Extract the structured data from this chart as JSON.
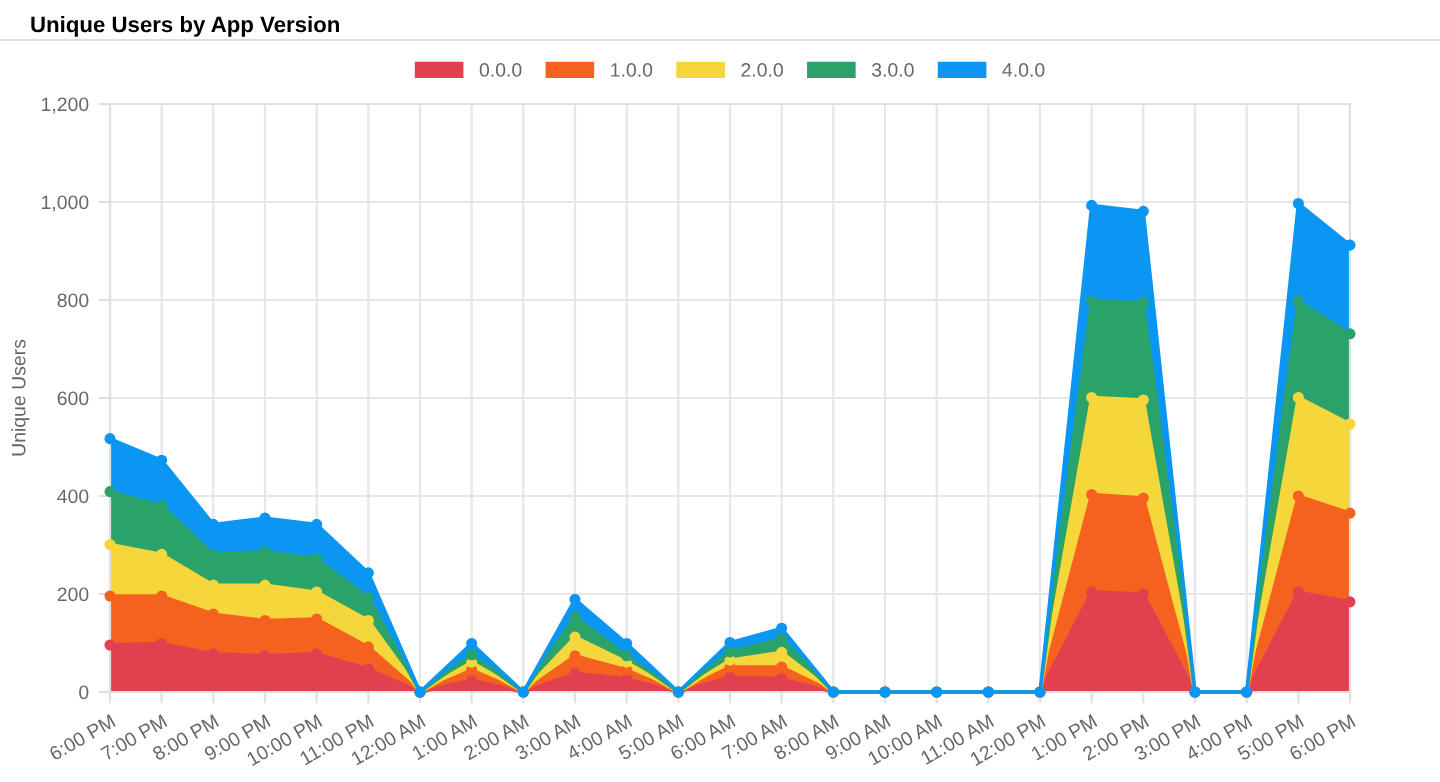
{
  "chart_data": {
    "type": "area",
    "title": "Unique Users by App Version",
    "ylabel": "Unique Users",
    "categories": [
      "6:00 PM",
      "7:00 PM",
      "8:00 PM",
      "9:00 PM",
      "10:00 PM",
      "11:00 PM",
      "12:00 AM",
      "1:00 AM",
      "2:00 AM",
      "3:00 AM",
      "4:00 AM",
      "5:00 AM",
      "6:00 AM",
      "7:00 AM",
      "8:00 AM",
      "9:00 AM",
      "10:00 AM",
      "11:00 AM",
      "12:00 PM",
      "1:00 PM",
      "2:00 PM",
      "3:00 PM",
      "4:00 PM",
      "5:00 PM",
      "6:00 PM"
    ],
    "series": [
      {
        "name": "0.0.0",
        "color": "#e2404f",
        "values": [
          96,
          99,
          78,
          74,
          78,
          47,
          0,
          24,
          0,
          38,
          27,
          0,
          31,
          27,
          0,
          0,
          0,
          0,
          0,
          204,
          200,
          0,
          0,
          204,
          184
        ]
      },
      {
        "name": "1.0.0",
        "color": "#f5621f",
        "values": [
          100,
          97,
          81,
          72,
          71,
          45,
          0,
          21,
          0,
          36,
          18,
          0,
          20,
          24,
          0,
          0,
          0,
          0,
          0,
          199,
          196,
          0,
          0,
          196,
          181
        ]
      },
      {
        "name": "2.0.0",
        "color": "#f5d73c",
        "values": [
          105,
          85,
          59,
          72,
          55,
          54,
          0,
          16,
          0,
          38,
          16,
          0,
          14,
          30,
          0,
          0,
          0,
          0,
          0,
          198,
          200,
          0,
          0,
          201,
          182
        ]
      },
      {
        "name": "3.0.0",
        "color": "#2aa36b",
        "values": [
          108,
          99,
          63,
          68,
          68,
          46,
          0,
          15,
          0,
          41,
          13,
          0,
          17,
          27,
          0,
          0,
          0,
          0,
          0,
          196,
          199,
          0,
          0,
          196,
          184
        ]
      },
      {
        "name": "4.0.0",
        "color": "#0a96f2",
        "values": [
          108,
          93,
          61,
          69,
          70,
          51,
          0,
          23,
          0,
          36,
          25,
          0,
          19,
          22,
          0,
          0,
          0,
          0,
          0,
          196,
          186,
          0,
          0,
          200,
          181
        ]
      }
    ],
    "stacked": true,
    "ylim": [
      0,
      1200
    ],
    "yticks": [
      0,
      200,
      400,
      600,
      800,
      {
        "value": 1000,
        "label": "1,000"
      },
      {
        "value": 1200,
        "label": "1,200"
      }
    ],
    "grid": true,
    "legend": "top",
    "marker": "circle",
    "line_style": "solid"
  }
}
